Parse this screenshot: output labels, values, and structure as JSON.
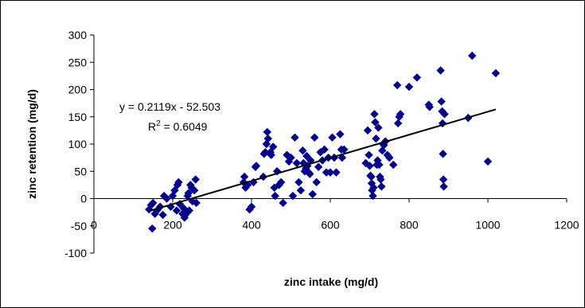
{
  "chart_data": {
    "type": "scatter",
    "title": "",
    "xlabel": "zinc intake (mg/d)",
    "ylabel": "zinc retention (mg/d)",
    "xlim": [
      0,
      1200
    ],
    "ylim": [
      -100,
      300
    ],
    "x_ticks": [
      "0",
      "200",
      "400",
      "600",
      "800",
      "1000",
      "1200"
    ],
    "y_ticks": [
      "300",
      "250",
      "200",
      "150",
      "100",
      "50",
      "0",
      "-50",
      "-100"
    ],
    "marker_color": "#00008B",
    "grid": false,
    "legend": "none",
    "trendline": {
      "slope": 0.2119,
      "intercept": -52.503,
      "x_range": [
        140,
        1020
      ],
      "equation_label": "y = 0.2119x - 52.503",
      "r2_prefix": "R",
      "r2_sup": "2",
      "r2_value": " = 0.6049"
    },
    "points": [
      [
        140,
        -20
      ],
      [
        145,
        -12
      ],
      [
        148,
        -55
      ],
      [
        150,
        -8
      ],
      [
        155,
        -28
      ],
      [
        160,
        -22
      ],
      [
        168,
        -15
      ],
      [
        175,
        -30
      ],
      [
        178,
        5
      ],
      [
        185,
        0
      ],
      [
        195,
        -15
      ],
      [
        200,
        5
      ],
      [
        205,
        15
      ],
      [
        210,
        -22
      ],
      [
        212,
        25
      ],
      [
        215,
        30
      ],
      [
        218,
        -10
      ],
      [
        225,
        -28
      ],
      [
        228,
        -18
      ],
      [
        230,
        -35
      ],
      [
        232,
        -30
      ],
      [
        235,
        -25
      ],
      [
        238,
        5
      ],
      [
        240,
        10
      ],
      [
        242,
        -22
      ],
      [
        245,
        25
      ],
      [
        248,
        20
      ],
      [
        250,
        -5
      ],
      [
        255,
        15
      ],
      [
        258,
        35
      ],
      [
        260,
        -8
      ],
      [
        380,
        30
      ],
      [
        382,
        40
      ],
      [
        385,
        20
      ],
      [
        390,
        25
      ],
      [
        395,
        -20
      ],
      [
        400,
        -15
      ],
      [
        405,
        30
      ],
      [
        410,
        58
      ],
      [
        412,
        60
      ],
      [
        430,
        40
      ],
      [
        432,
        82
      ],
      [
        435,
        85
      ],
      [
        438,
        100
      ],
      [
        440,
        122
      ],
      [
        442,
        110
      ],
      [
        448,
        85
      ],
      [
        450,
        80
      ],
      [
        455,
        95
      ],
      [
        458,
        20
      ],
      [
        460,
        5
      ],
      [
        465,
        50
      ],
      [
        470,
        25
      ],
      [
        475,
        30
      ],
      [
        480,
        -8
      ],
      [
        490,
        80
      ],
      [
        495,
        68
      ],
      [
        500,
        75
      ],
      [
        505,
        5
      ],
      [
        510,
        112
      ],
      [
        515,
        65
      ],
      [
        520,
        30
      ],
      [
        525,
        15
      ],
      [
        530,
        88
      ],
      [
        532,
        65
      ],
      [
        535,
        50
      ],
      [
        538,
        55
      ],
      [
        540,
        78
      ],
      [
        542,
        60
      ],
      [
        545,
        48
      ],
      [
        548,
        45
      ],
      [
        550,
        70
      ],
      [
        555,
        8
      ],
      [
        560,
        112
      ],
      [
        565,
        30
      ],
      [
        570,
        58
      ],
      [
        575,
        85
      ],
      [
        580,
        70
      ],
      [
        585,
        90
      ],
      [
        590,
        48
      ],
      [
        595,
        75
      ],
      [
        600,
        48
      ],
      [
        605,
        112
      ],
      [
        610,
        75
      ],
      [
        615,
        48
      ],
      [
        625,
        118
      ],
      [
        628,
        90
      ],
      [
        630,
        75
      ],
      [
        635,
        90
      ],
      [
        690,
        65
      ],
      [
        695,
        125
      ],
      [
        698,
        80
      ],
      [
        700,
        60
      ],
      [
        702,
        42
      ],
      [
        704,
        40
      ],
      [
        705,
        28
      ],
      [
        706,
        15
      ],
      [
        708,
        5
      ],
      [
        710,
        20
      ],
      [
        712,
        155
      ],
      [
        714,
        140
      ],
      [
        716,
        110
      ],
      [
        718,
        62
      ],
      [
        720,
        70
      ],
      [
        722,
        130
      ],
      [
        724,
        62
      ],
      [
        726,
        40
      ],
      [
        728,
        35
      ],
      [
        730,
        22
      ],
      [
        732,
        88
      ],
      [
        734,
        100
      ],
      [
        736,
        98
      ],
      [
        740,
        105
      ],
      [
        745,
        80
      ],
      [
        750,
        75
      ],
      [
        760,
        62
      ],
      [
        770,
        208
      ],
      [
        772,
        138
      ],
      [
        775,
        150
      ],
      [
        778,
        155
      ],
      [
        800,
        205
      ],
      [
        820,
        222
      ],
      [
        850,
        172
      ],
      [
        852,
        168
      ],
      [
        880,
        235
      ],
      [
        882,
        178
      ],
      [
        884,
        160
      ],
      [
        885,
        138
      ],
      [
        886,
        82
      ],
      [
        887,
        35
      ],
      [
        888,
        22
      ],
      [
        890,
        155
      ],
      [
        950,
        148
      ],
      [
        960,
        262
      ],
      [
        1000,
        68
      ],
      [
        1020,
        230
      ]
    ]
  }
}
